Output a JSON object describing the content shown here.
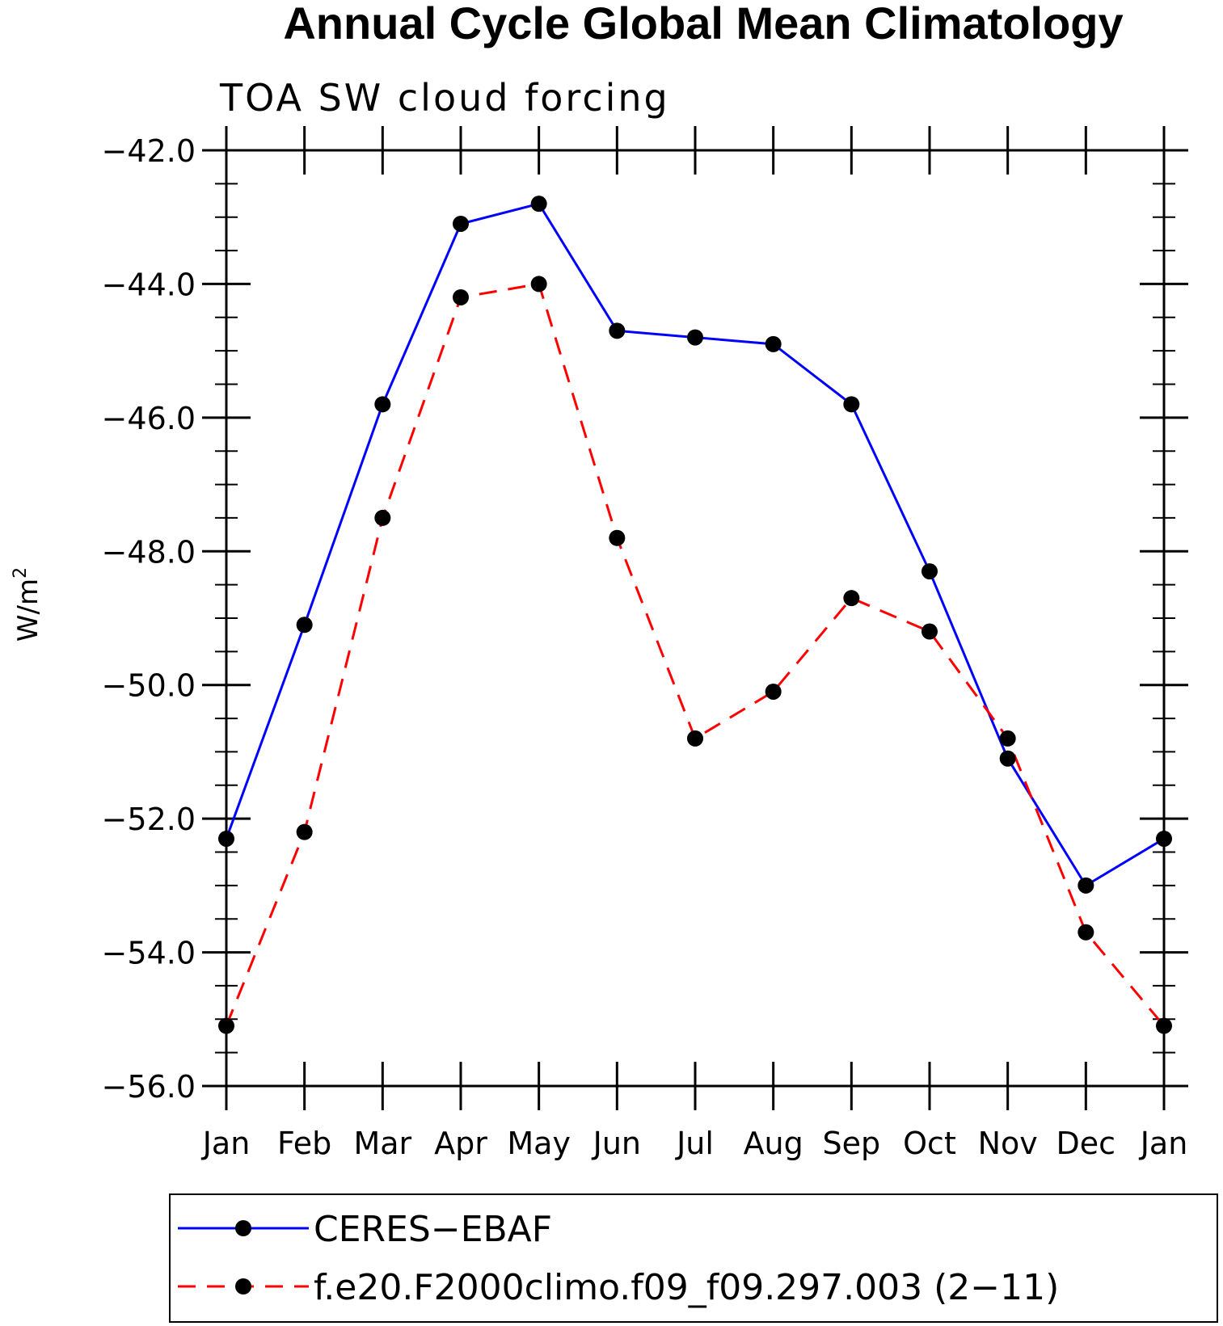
{
  "chart_data": {
    "type": "line",
    "title": "Annual Cycle Global Mean Climatology",
    "subtitle": "TOA SW cloud forcing",
    "xlabel": "",
    "ylabel": "W/m",
    "ylabel_sup": "2",
    "categories": [
      "Jan",
      "Feb",
      "Mar",
      "Apr",
      "May",
      "Jun",
      "Jul",
      "Aug",
      "Sep",
      "Oct",
      "Nov",
      "Dec",
      "Jan"
    ],
    "ylim": [
      -56.0,
      -42.0
    ],
    "yticks": [
      -42.0,
      -44.0,
      -46.0,
      -48.0,
      -50.0,
      -52.0,
      -54.0,
      -56.0
    ],
    "ytick_labels": [
      "−42.0",
      "−44.0",
      "−46.0",
      "−48.0",
      "−50.0",
      "−52.0",
      "−54.0",
      "−56.0"
    ],
    "grid": false,
    "legend_position": "bottom",
    "series": [
      {
        "name": "CERES−EBAF",
        "color": "#0000ff",
        "style": "solid",
        "marker": "filled-circle",
        "values": [
          -52.3,
          -49.1,
          -45.8,
          -43.1,
          -42.8,
          -44.7,
          -44.8,
          -44.9,
          -45.8,
          -48.3,
          -51.1,
          -53.0,
          -52.3
        ]
      },
      {
        "name": "f.e20.F2000climo.f09_f09.297.003 (2−11)",
        "color": "#ff0000",
        "style": "dashed",
        "marker": "filled-circle",
        "values": [
          -55.1,
          -52.2,
          -47.5,
          -44.2,
          -44.0,
          -47.8,
          -50.8,
          -50.1,
          -48.7,
          -49.2,
          -50.8,
          -53.7,
          -55.1
        ]
      }
    ]
  }
}
